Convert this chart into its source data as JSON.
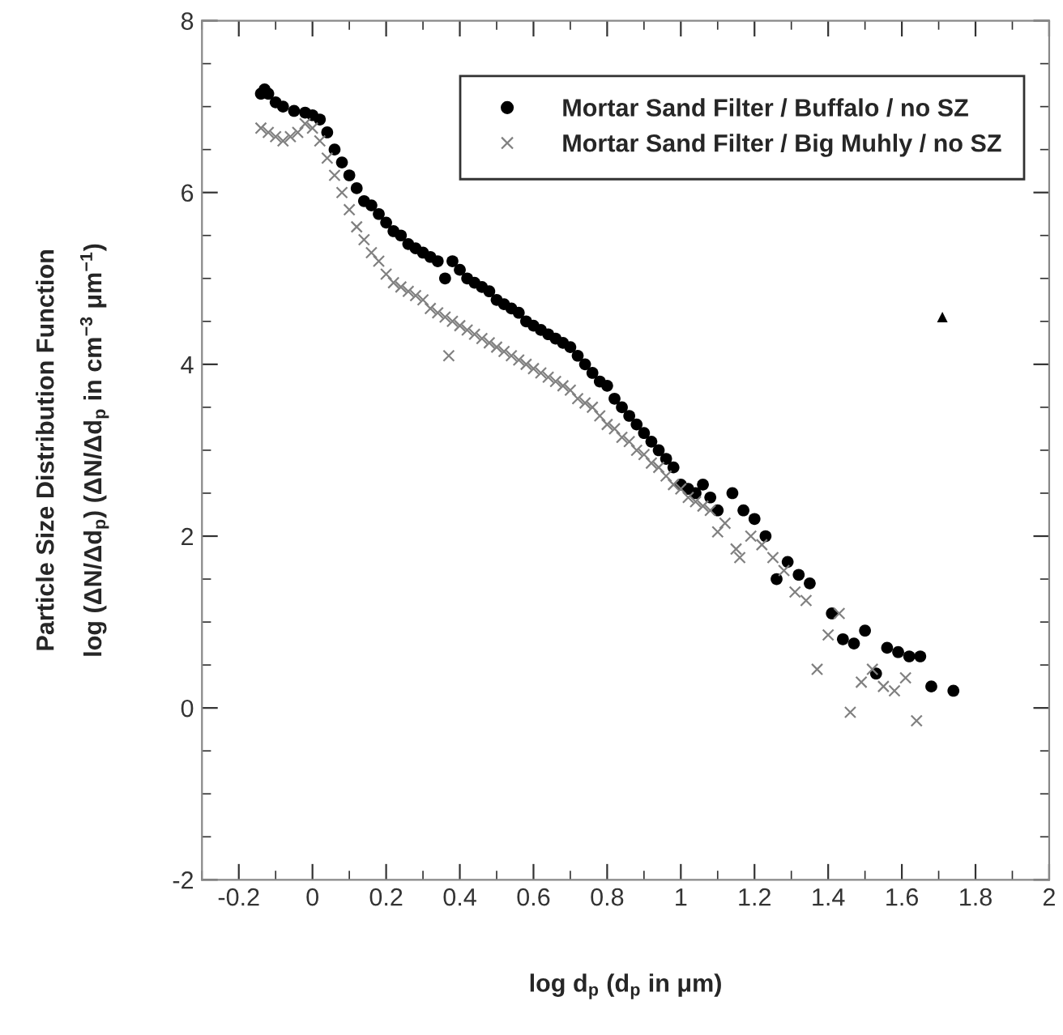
{
  "chart_data": {
    "type": "scatter",
    "xlabel": "log d$_{p}$ (d$_{p}$ in μm)",
    "ylabel": "Particle Size Distribution Function\nlog (ΔN/Δd$_{p}$) (ΔN/Δd$_{p}$ in cm$^{−3}$ μm$^{−1}$)",
    "xlim": [
      -0.3,
      2
    ],
    "ylim": [
      -2,
      8
    ],
    "xticks": [
      -0.2,
      0,
      0.2,
      0.4,
      0.6,
      0.8,
      1,
      1.2,
      1.4,
      1.6,
      1.8,
      2
    ],
    "yticks": [
      -2,
      0,
      2,
      4,
      6,
      8
    ],
    "grid": false,
    "legend": "top right",
    "series": [
      {
        "name": "Mortar Sand Filter / Buffalo / no SZ",
        "color": "#000000",
        "marker": "circle",
        "x": [
          -0.14,
          -0.13,
          -0.12,
          -0.1,
          -0.08,
          -0.05,
          -0.02,
          0,
          0.02,
          0.04,
          0.06,
          0.08,
          0.1,
          0.12,
          0.14,
          0.16,
          0.18,
          0.2,
          0.22,
          0.24,
          0.26,
          0.28,
          0.3,
          0.32,
          0.34,
          0.36,
          0.38,
          0.4,
          0.42,
          0.44,
          0.46,
          0.48,
          0.5,
          0.52,
          0.54,
          0.56,
          0.58,
          0.6,
          0.62,
          0.64,
          0.66,
          0.68,
          0.7,
          0.72,
          0.74,
          0.76,
          0.78,
          0.8,
          0.82,
          0.84,
          0.86,
          0.88,
          0.9,
          0.92,
          0.94,
          0.96,
          0.98,
          1.0,
          1.02,
          1.04,
          1.06,
          1.08,
          1.1,
          1.14,
          1.17,
          1.2,
          1.23,
          1.26,
          1.29,
          1.32,
          1.35,
          1.41,
          1.44,
          1.47,
          1.5,
          1.53,
          1.56,
          1.59,
          1.62,
          1.65,
          1.68,
          1.74
        ],
        "values": [
          7.15,
          7.2,
          7.15,
          7.05,
          7.0,
          6.95,
          6.93,
          6.9,
          6.85,
          6.7,
          6.5,
          6.35,
          6.2,
          6.05,
          5.9,
          5.85,
          5.75,
          5.65,
          5.55,
          5.5,
          5.4,
          5.35,
          5.3,
          5.25,
          5.2,
          5.0,
          5.2,
          5.1,
          5.0,
          4.95,
          4.9,
          4.85,
          4.75,
          4.7,
          4.65,
          4.6,
          4.5,
          4.45,
          4.4,
          4.35,
          4.3,
          4.25,
          4.2,
          4.1,
          4.0,
          3.9,
          3.8,
          3.75,
          3.6,
          3.5,
          3.4,
          3.3,
          3.2,
          3.1,
          3.0,
          2.9,
          2.8,
          2.6,
          2.55,
          2.5,
          2.6,
          2.45,
          2.3,
          2.5,
          2.3,
          2.2,
          2.0,
          1.5,
          1.7,
          1.55,
          1.45,
          1.1,
          0.8,
          0.75,
          0.9,
          0.4,
          0.7,
          0.65,
          0.6,
          0.6,
          0.25,
          0.2
        ]
      },
      {
        "name": "Mortar Sand Filter / Big Muhly / no SZ",
        "color": "#808080",
        "marker": "cross",
        "x": [
          -0.14,
          -0.12,
          -0.1,
          -0.08,
          -0.06,
          -0.04,
          -0.02,
          0,
          0.02,
          0.04,
          0.06,
          0.08,
          0.1,
          0.12,
          0.14,
          0.16,
          0.18,
          0.2,
          0.22,
          0.24,
          0.26,
          0.28,
          0.3,
          0.32,
          0.34,
          0.36,
          0.37,
          0.38,
          0.4,
          0.42,
          0.44,
          0.46,
          0.48,
          0.5,
          0.52,
          0.54,
          0.56,
          0.58,
          0.6,
          0.62,
          0.64,
          0.66,
          0.68,
          0.7,
          0.72,
          0.74,
          0.76,
          0.78,
          0.8,
          0.82,
          0.84,
          0.86,
          0.88,
          0.9,
          0.92,
          0.94,
          0.96,
          0.98,
          1.0,
          1.02,
          1.04,
          1.06,
          1.08,
          1.1,
          1.12,
          1.15,
          1.16,
          1.19,
          1.22,
          1.25,
          1.28,
          1.31,
          1.34,
          1.37,
          1.4,
          1.43,
          1.46,
          1.49,
          1.52,
          1.55,
          1.58,
          1.61,
          1.64
        ],
        "values": [
          6.75,
          6.7,
          6.65,
          6.6,
          6.65,
          6.7,
          6.8,
          6.75,
          6.6,
          6.4,
          6.2,
          6.0,
          5.8,
          5.6,
          5.45,
          5.3,
          5.2,
          5.05,
          4.95,
          4.9,
          4.85,
          4.8,
          4.75,
          4.65,
          4.6,
          4.55,
          4.1,
          4.5,
          4.45,
          4.4,
          4.35,
          4.3,
          4.25,
          4.2,
          4.15,
          4.1,
          4.05,
          4.0,
          3.95,
          3.9,
          3.85,
          3.8,
          3.75,
          3.7,
          3.6,
          3.55,
          3.5,
          3.4,
          3.3,
          3.25,
          3.15,
          3.1,
          3.0,
          2.95,
          2.85,
          2.8,
          2.7,
          2.6,
          2.55,
          2.45,
          2.4,
          2.35,
          2.3,
          2.05,
          2.15,
          1.85,
          1.75,
          2.0,
          1.9,
          1.75,
          1.6,
          1.35,
          1.25,
          0.45,
          0.85,
          1.1,
          -0.05,
          0.3,
          0.45,
          0.25,
          0.2,
          0.35,
          -0.15
        ]
      },
      {
        "color": "#000000",
        "marker": "triangle",
        "x": [
          1.71
        ],
        "values": [
          4.55
        ]
      }
    ]
  }
}
